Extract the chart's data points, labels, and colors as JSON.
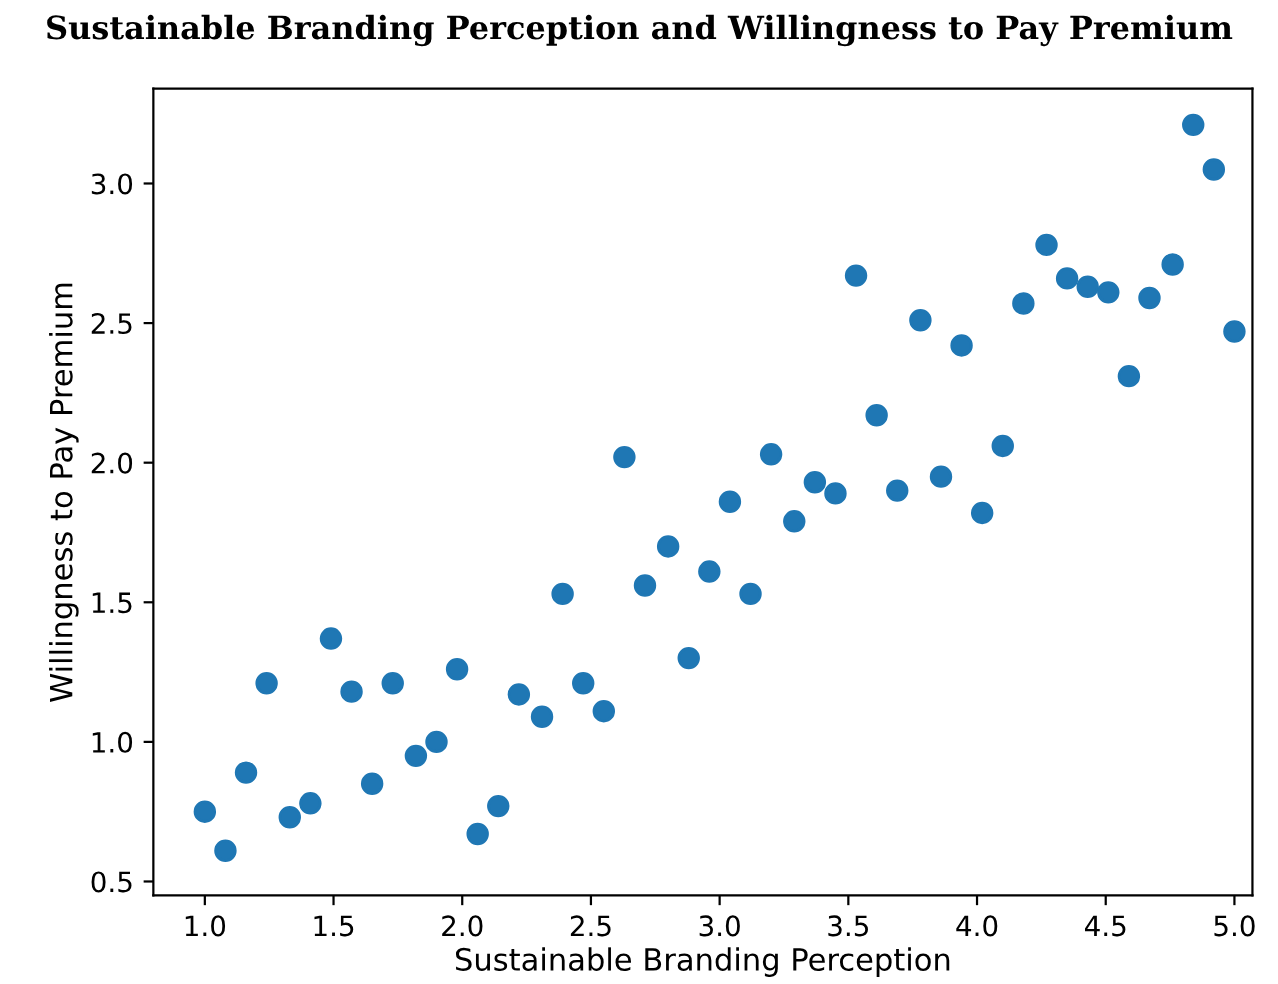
{
  "chart_data": {
    "type": "scatter",
    "title": "Sustainable Branding Perception and Willingness to Pay Premium",
    "xlabel": "Sustainable Branding Perception",
    "ylabel": "Willingness to Pay Premium",
    "x": [
      1.0,
      1.08,
      1.16,
      1.24,
      1.33,
      1.41,
      1.49,
      1.57,
      1.65,
      1.73,
      1.82,
      1.9,
      1.98,
      2.06,
      2.14,
      2.22,
      2.31,
      2.39,
      2.47,
      2.55,
      2.63,
      2.71,
      2.8,
      2.88,
      2.96,
      3.04,
      3.12,
      3.2,
      3.29,
      3.37,
      3.45,
      3.53,
      3.61,
      3.69,
      3.78,
      3.86,
      3.94,
      4.02,
      4.1,
      4.18,
      4.27,
      4.35,
      4.43,
      4.51,
      4.59,
      4.67,
      4.76,
      4.84,
      4.92,
      5.0
    ],
    "series": [
      {
        "color": "#1f77b4",
        "values": [
          0.75,
          0.61,
          0.89,
          1.21,
          0.73,
          0.78,
          1.37,
          1.18,
          0.85,
          1.21,
          0.95,
          1.0,
          1.26,
          0.67,
          0.77,
          1.17,
          1.09,
          1.53,
          1.21,
          1.11,
          2.02,
          1.56,
          1.7,
          1.3,
          1.61,
          1.86,
          1.53,
          2.03,
          1.79,
          1.93,
          1.89,
          2.67,
          2.17,
          1.9,
          2.51,
          1.95,
          2.42,
          1.82,
          2.06,
          2.57,
          2.78,
          2.66,
          2.63,
          2.61,
          2.31,
          2.59,
          2.71,
          3.21,
          3.05,
          2.47
        ]
      }
    ],
    "xlim": [
      0.8,
      5.07
    ],
    "ylim": [
      0.45,
      3.34
    ],
    "xticks": [
      {
        "value": 1,
        "label": "1.0"
      },
      1.5,
      {
        "value": 2,
        "label": "2.0"
      },
      2.5,
      {
        "value": 3,
        "label": "3.0"
      },
      3.5,
      {
        "value": 4,
        "label": "4.0"
      },
      4.5,
      {
        "value": 5,
        "label": "5.0"
      }
    ],
    "yticks": [
      0.5,
      {
        "value": 1,
        "label": "1.0"
      },
      1.5,
      {
        "value": 2,
        "label": "2.0"
      },
      2.5,
      {
        "value": 3,
        "label": "3.0"
      }
    ],
    "marker": "circle",
    "grid": false,
    "legend": false
  }
}
